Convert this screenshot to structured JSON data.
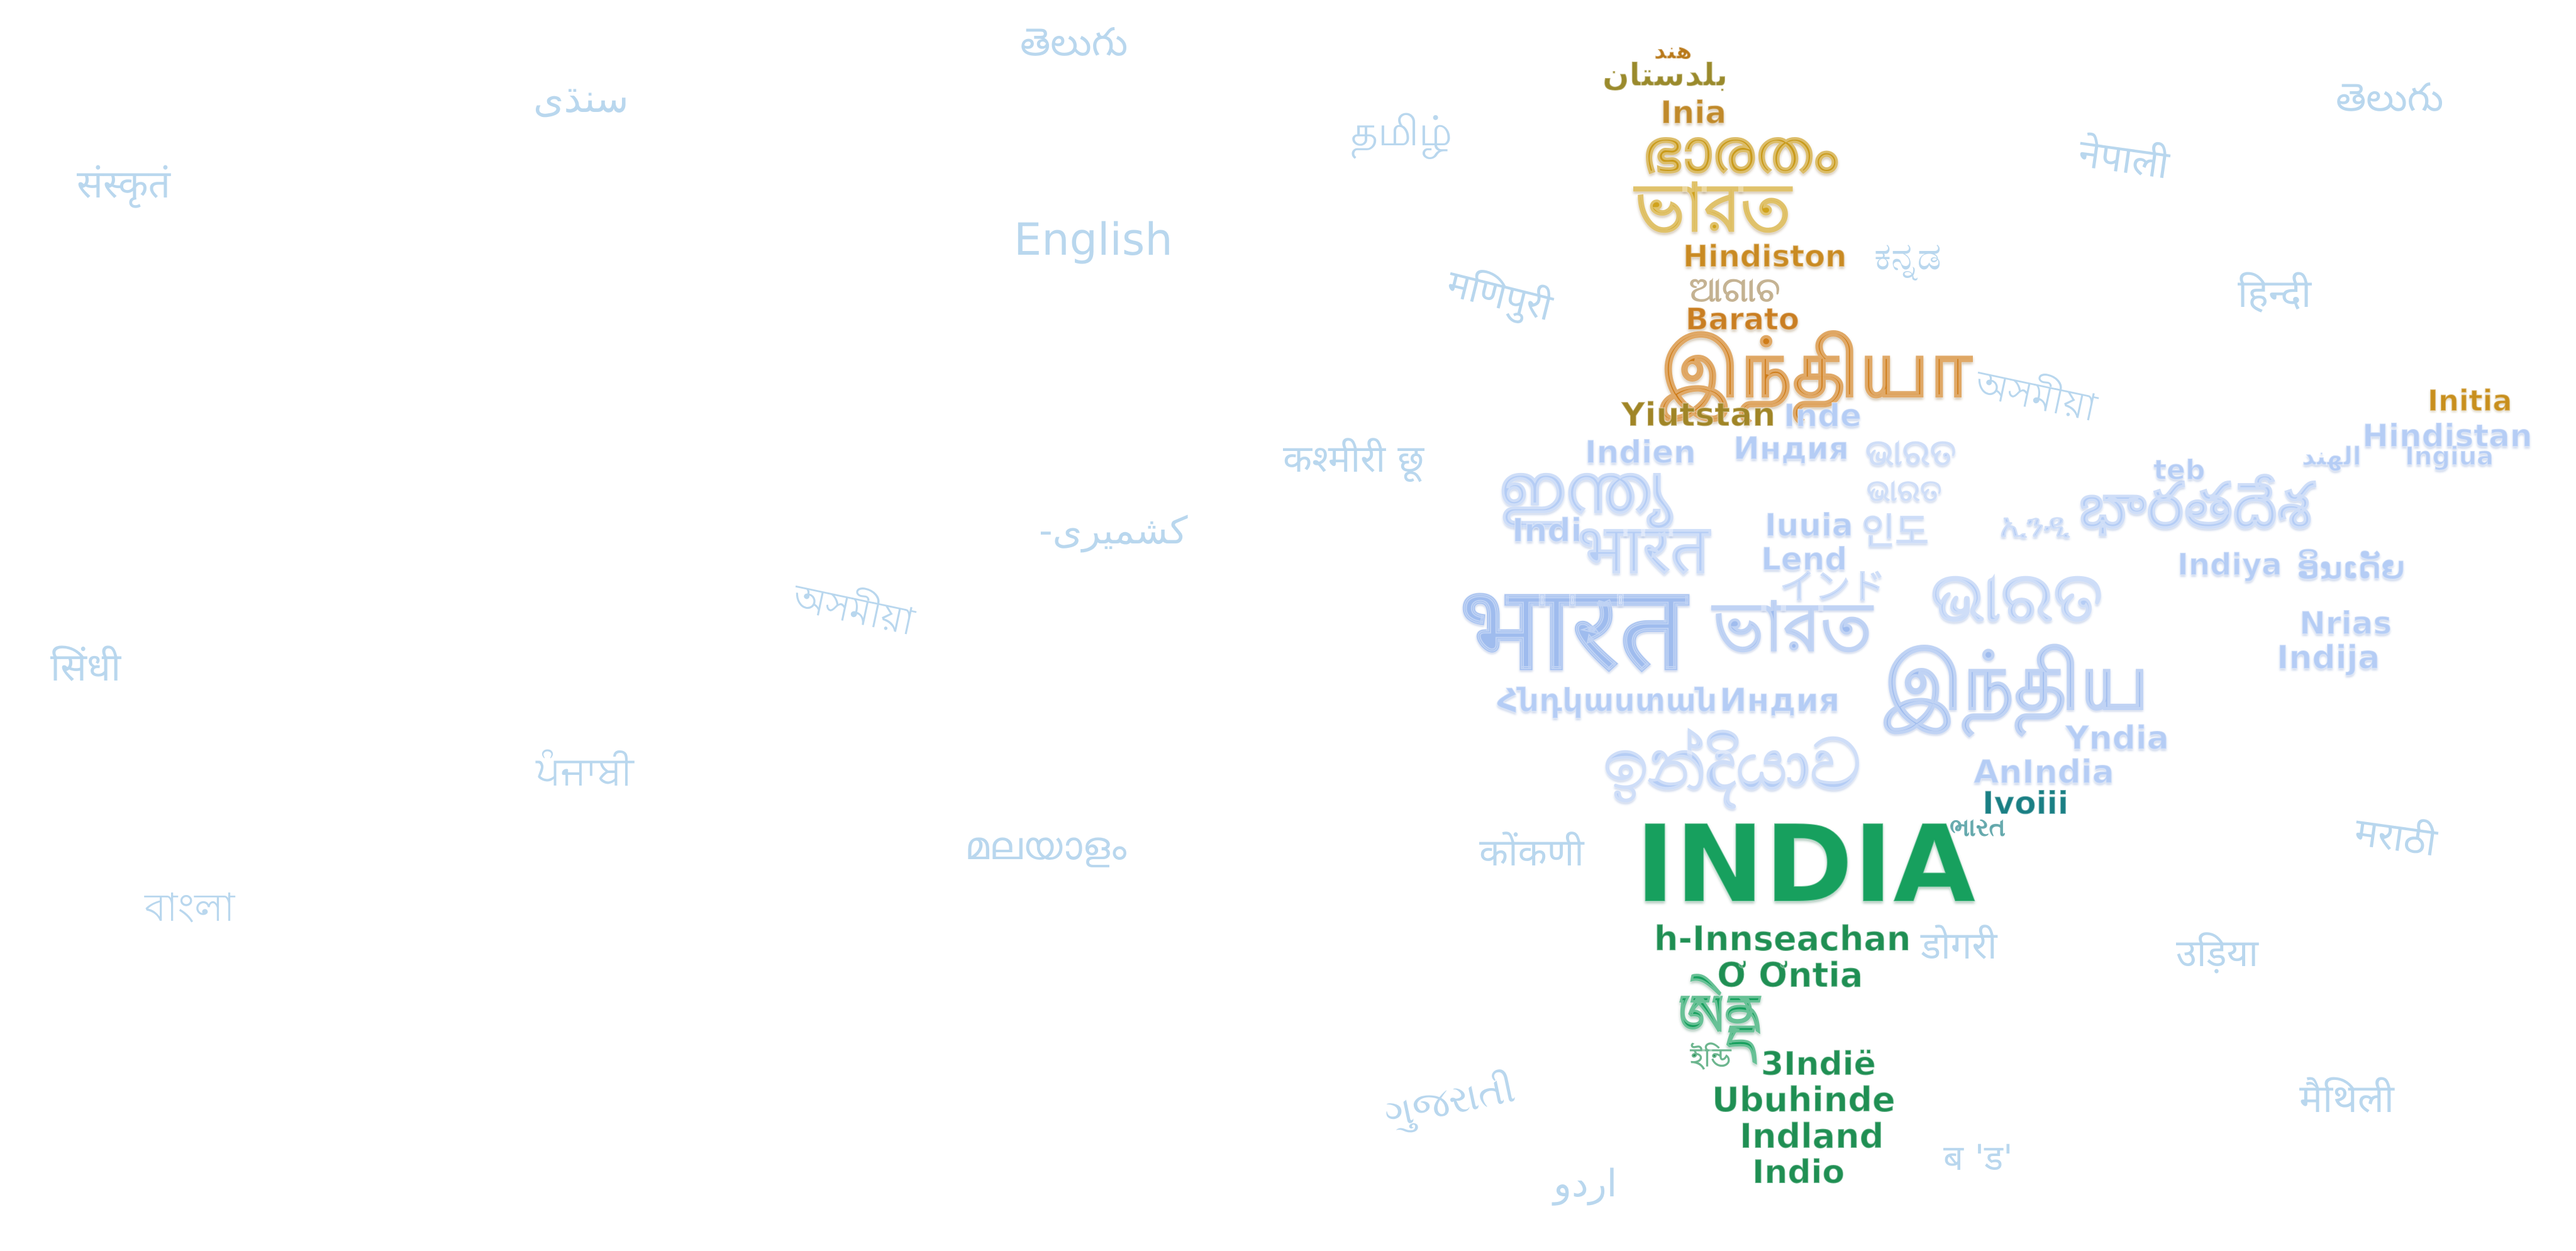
{
  "ambient_words": [
    {
      "text": "తెలుగు"
    },
    {
      "text": "سنڌی"
    },
    {
      "text": "संस्कृतं"
    },
    {
      "text": "English"
    },
    {
      "text": "தமிழ்"
    },
    {
      "text": "नेपाली"
    },
    {
      "text": "తెలుగు"
    },
    {
      "text": "ಕನ್ನಡ"
    },
    {
      "text": "मणिपुरी"
    },
    {
      "text": "हिन्दी"
    },
    {
      "text": "অসমীয়া"
    },
    {
      "text": "कश्मीरी छू"
    },
    {
      "text": "-کشمیری"
    },
    {
      "text": "অসমীয়া"
    },
    {
      "text": "सिंधी"
    },
    {
      "text": "ਪੰਜਾਬੀ"
    },
    {
      "text": "മലയാളം"
    },
    {
      "text": "कोंकणी"
    },
    {
      "text": "मराठी"
    },
    {
      "text": "বাংলা"
    },
    {
      "text": "डोगरी"
    },
    {
      "text": "उड़िया"
    },
    {
      "text": "ગુજરાતી"
    },
    {
      "text": "मैथिली"
    },
    {
      "text": "اردو"
    },
    {
      "text": "ब 'ड'"
    }
  ],
  "map_words": [
    {
      "text": "هند"
    },
    {
      "text": "بلدستان"
    },
    {
      "text": "Inia"
    },
    {
      "text": "ഭാരതം"
    },
    {
      "text": "ভারত"
    },
    {
      "text": "Hindiston"
    },
    {
      "text": "ଆଗାଚ"
    },
    {
      "text": "Barato"
    },
    {
      "text": "இந்தியா"
    },
    {
      "text": "Yiutstan"
    },
    {
      "text": "Inde"
    },
    {
      "text": "Indien"
    },
    {
      "text": "Индия"
    },
    {
      "text": "ଭାରତ"
    },
    {
      "text": "ഇന്ത്യ"
    },
    {
      "text": "ଭାରତ"
    },
    {
      "text": "Indi"
    },
    {
      "text": "भारत"
    },
    {
      "text": "Iuuia"
    },
    {
      "text": "인도"
    },
    {
      "text": "Lend"
    },
    {
      "text": "ኢንዲ"
    },
    {
      "text": "インド"
    },
    {
      "text": "भारत"
    },
    {
      "text": "ভারত"
    },
    {
      "text": "ଭାରତ"
    },
    {
      "text": "భారతదేశ"
    },
    {
      "text": "teb"
    },
    {
      "text": "Indiya"
    },
    {
      "text": "ອິນເດັຍ"
    },
    {
      "text": "Nrias"
    },
    {
      "text": "Indija"
    },
    {
      "text": "Hindistan"
    },
    {
      "text": "Initia"
    },
    {
      "text": "Ingiua"
    },
    {
      "text": "الهند"
    },
    {
      "text": "இந்திய"
    },
    {
      "text": "Հնդկաստան"
    },
    {
      "text": "Индия"
    },
    {
      "text": "Yndia"
    },
    {
      "text": "ඉන්දියාව"
    },
    {
      "text": "AnIndia"
    },
    {
      "text": "Ivoiii"
    },
    {
      "text": "ભારત"
    },
    {
      "text": "INDIA"
    },
    {
      "text": "h-Innseachan"
    },
    {
      "text": "Ơ Ơntia"
    },
    {
      "text": "ཨེནྡ"
    },
    {
      "text": "ইন্ডি"
    },
    {
      "text": "3Indië"
    },
    {
      "text": "Ubuhinde"
    },
    {
      "text": "Indland"
    },
    {
      "text": "Indio"
    }
  ]
}
